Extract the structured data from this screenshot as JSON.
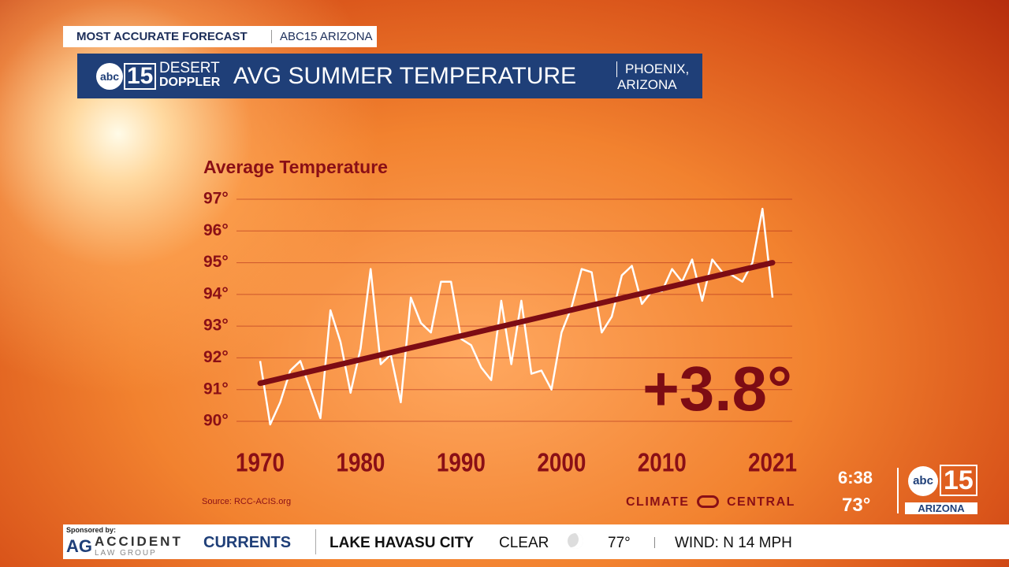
{
  "broadcast": {
    "tag": "MOST ACCURATE FORECAST",
    "station": "ABC15 ARIZONA",
    "logo_abc": "abc",
    "logo_15": "15",
    "brand_top": "DESERT",
    "brand_bottom": "DOPPLER",
    "title": "AVG SUMMER TEMPERATURE",
    "place_1": "PHOENIX,",
    "place_2": "ARIZONA",
    "source": "Source: RCC-ACIS.org",
    "partner_1": "CLIMATE",
    "partner_2": "CENTRAL",
    "time": "6:38",
    "temp": "73°",
    "corner_abc": "abc",
    "corner_15": "15",
    "corner_state": "ARIZONA"
  },
  "ticker": {
    "sponsored": "Sponsored by:",
    "sponsor_mark": "AG",
    "sponsor_1": "ACCIDENT",
    "sponsor_2": "LAW GROUP",
    "section": "CURRENTS",
    "city": "LAKE HAVASU CITY",
    "sky": "CLEAR",
    "temp": "77°",
    "wind": "WIND: N 14 MPH"
  },
  "chart_data": {
    "type": "line",
    "title": "Average Temperature",
    "annotation": "+3.8°",
    "x": [
      1970,
      1971,
      1972,
      1973,
      1974,
      1975,
      1976,
      1977,
      1978,
      1979,
      1980,
      1981,
      1982,
      1983,
      1984,
      1985,
      1986,
      1987,
      1988,
      1989,
      1990,
      1991,
      1992,
      1993,
      1994,
      1995,
      1996,
      1997,
      1998,
      1999,
      2000,
      2001,
      2002,
      2003,
      2004,
      2005,
      2006,
      2007,
      2008,
      2009,
      2010,
      2011,
      2012,
      2013,
      2014,
      2015,
      2016,
      2017,
      2018,
      2019,
      2020,
      2021
    ],
    "series": [
      {
        "color": "#ffffff",
        "values": [
          91.9,
          89.9,
          90.6,
          91.6,
          91.9,
          91.0,
          90.1,
          93.5,
          92.5,
          90.9,
          92.3,
          94.8,
          91.8,
          92.1,
          90.6,
          93.9,
          93.1,
          92.8,
          94.4,
          94.4,
          92.6,
          92.4,
          91.7,
          91.3,
          93.8,
          91.8,
          93.8,
          91.5,
          91.6,
          91.0,
          92.8,
          93.6,
          94.8,
          94.7,
          92.8,
          93.3,
          94.6,
          94.9,
          93.7,
          94.1,
          94.1,
          94.8,
          94.4,
          95.1,
          93.8,
          95.1,
          94.7,
          94.6,
          94.4,
          95.0,
          96.7,
          93.9
        ]
      }
    ],
    "trend": {
      "color": "#7d0c14",
      "x": [
        1970,
        2021
      ],
      "values": [
        91.2,
        95.0
      ]
    },
    "xlim": [
      1970,
      2021
    ],
    "xticks": [
      1970,
      1980,
      1990,
      2000,
      2010,
      2021
    ],
    "ylim": [
      90,
      97
    ],
    "yticks": [
      {
        "value": 90,
        "label": "90°"
      },
      {
        "value": 91,
        "label": "91°"
      },
      {
        "value": 92,
        "label": "92°"
      },
      {
        "value": 93,
        "label": "93°"
      },
      {
        "value": 94,
        "label": "94°"
      },
      {
        "value": 95,
        "label": "95°"
      },
      {
        "value": 96,
        "label": "96°"
      },
      {
        "value": 97,
        "label": "97°"
      }
    ],
    "grid": true,
    "label_color": "#8a0f16"
  }
}
